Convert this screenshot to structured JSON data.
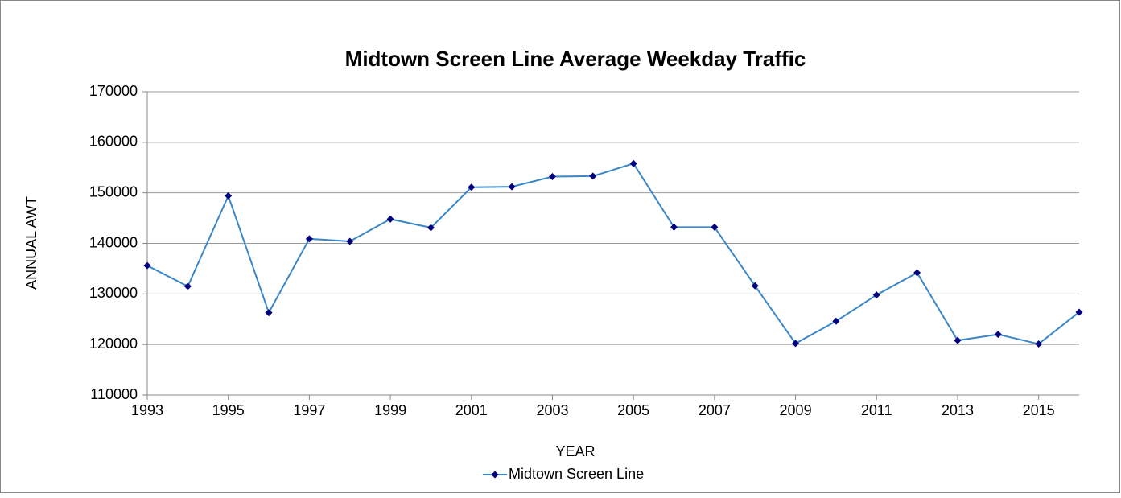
{
  "chart_data": {
    "type": "line",
    "title": "Midtown Screen Line Average Weekday Traffic",
    "x_label": "YEAR",
    "y_label": "ANNUAL  AWT",
    "x": [
      1993,
      1994,
      1995,
      1996,
      1997,
      1998,
      1999,
      2000,
      2001,
      2002,
      2003,
      2004,
      2005,
      2006,
      2007,
      2008,
      2009,
      2010,
      2011,
      2012,
      2013,
      2014,
      2015,
      2016
    ],
    "series": [
      {
        "name": "Midtown Screen Line",
        "color": "#3a87c8",
        "marker_color": "#00007f",
        "values": [
          135600,
          131500,
          149400,
          126300,
          140900,
          140400,
          144800,
          143100,
          151100,
          151200,
          153200,
          153300,
          155800,
          143200,
          143200,
          131600,
          120200,
          124600,
          129800,
          134200,
          120800,
          122000,
          120100,
          126400
        ]
      }
    ],
    "xlim": [
      1993,
      2016
    ],
    "xticks": [
      1993,
      1995,
      1997,
      1999,
      2001,
      2003,
      2005,
      2007,
      2009,
      2011,
      2013,
      2015
    ],
    "ylim": [
      110000,
      170000
    ],
    "yticks": [
      110000,
      120000,
      130000,
      140000,
      150000,
      160000,
      170000
    ],
    "grid": true,
    "legend": "bottom"
  }
}
